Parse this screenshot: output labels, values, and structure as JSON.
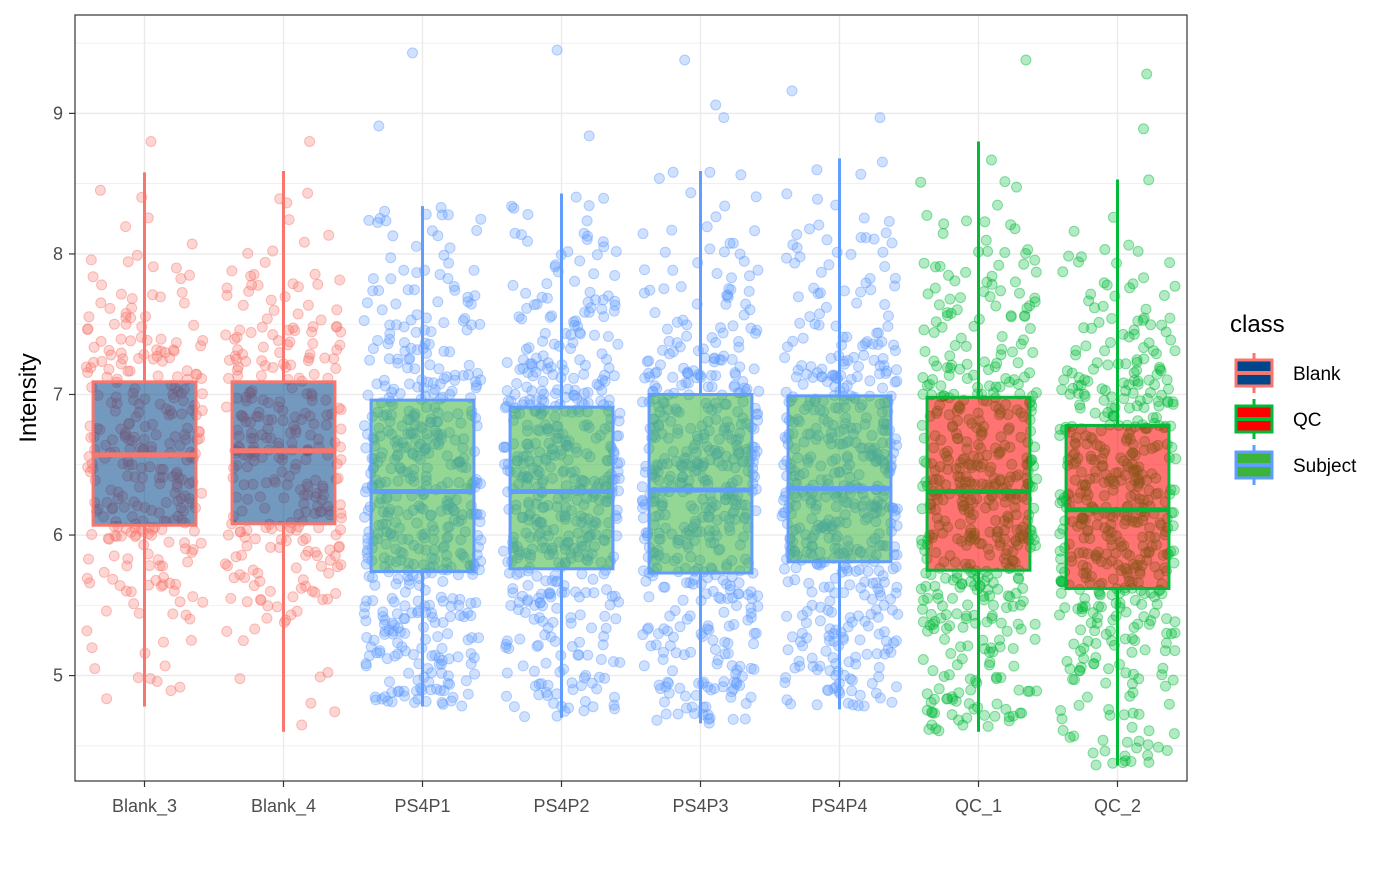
{
  "chart_data": {
    "type": "boxplot",
    "title": "",
    "xlabel": "",
    "ylabel": "Intensity",
    "ylim": [
      4.25,
      9.7
    ],
    "yticks": [
      5,
      6,
      7,
      8,
      9
    ],
    "grid": true,
    "legend_placement": "right",
    "legend_title": "class",
    "class_colors": {
      "Blank": {
        "fill": "#00468B",
        "outline": "#F8766D"
      },
      "QC": {
        "fill": "#FF0000",
        "outline": "#00BA38"
      },
      "Subject": {
        "fill": "#3CB43C",
        "outline": "#619CFF"
      }
    },
    "legend_entries": [
      {
        "label": "Blank",
        "class": "Blank"
      },
      {
        "label": "QC",
        "class": "QC"
      },
      {
        "label": "Subject",
        "class": "Subject"
      }
    ],
    "categories": [
      "Blank_3",
      "Blank_4",
      "PS4P1",
      "PS4P2",
      "PS4P3",
      "PS4P4",
      "QC_1",
      "QC_2"
    ],
    "boxes": [
      {
        "category": "Blank_3",
        "class": "Blank",
        "min": 4.78,
        "q1": 6.07,
        "median": 6.57,
        "q3": 7.09,
        "max": 8.58
      },
      {
        "category": "Blank_4",
        "class": "Blank",
        "min": 4.6,
        "q1": 6.08,
        "median": 6.6,
        "q3": 7.09,
        "max": 8.59
      },
      {
        "category": "PS4P1",
        "class": "Subject",
        "min": 4.78,
        "q1": 5.74,
        "median": 6.31,
        "q3": 6.96,
        "max": 8.34
      },
      {
        "category": "PS4P2",
        "class": "Subject",
        "min": 4.7,
        "q1": 5.76,
        "median": 6.31,
        "q3": 6.91,
        "max": 8.43
      },
      {
        "category": "PS4P3",
        "class": "Subject",
        "min": 4.66,
        "q1": 5.73,
        "median": 6.32,
        "q3": 7.0,
        "max": 8.59
      },
      {
        "category": "PS4P4",
        "class": "Subject",
        "min": 4.76,
        "q1": 5.81,
        "median": 6.33,
        "q3": 6.99,
        "max": 8.68
      },
      {
        "category": "QC_1",
        "class": "QC",
        "min": 4.6,
        "q1": 5.75,
        "median": 6.31,
        "q3": 6.98,
        "max": 8.8
      },
      {
        "category": "QC_2",
        "class": "QC",
        "min": 4.36,
        "q1": 5.62,
        "median": 6.18,
        "q3": 6.78,
        "max": 8.53
      }
    ],
    "outliers": [
      {
        "category": "PS4P1",
        "y": 9.43
      },
      {
        "category": "PS4P1",
        "y": 8.91
      },
      {
        "category": "PS4P2",
        "y": 9.45
      },
      {
        "category": "PS4P2",
        "y": 8.84
      },
      {
        "category": "PS4P3",
        "y": 9.38
      },
      {
        "category": "PS4P3",
        "y": 9.06
      },
      {
        "category": "PS4P3",
        "y": 8.97
      },
      {
        "category": "PS4P4",
        "y": 9.16
      },
      {
        "category": "PS4P4",
        "y": 8.97
      },
      {
        "category": "QC_1",
        "y": 9.38
      },
      {
        "category": "QC_2",
        "y": 9.28
      },
      {
        "category": "QC_2",
        "y": 8.89
      },
      {
        "category": "Blank_3",
        "y": 8.8
      },
      {
        "category": "Blank_4",
        "y": 8.8
      }
    ],
    "point_counts": {
      "Blank_3": 300,
      "Blank_4": 300,
      "PS4P1": 520,
      "PS4P2": 520,
      "PS4P3": 520,
      "PS4P4": 520,
      "QC_1": 520,
      "QC_2": 520
    }
  }
}
